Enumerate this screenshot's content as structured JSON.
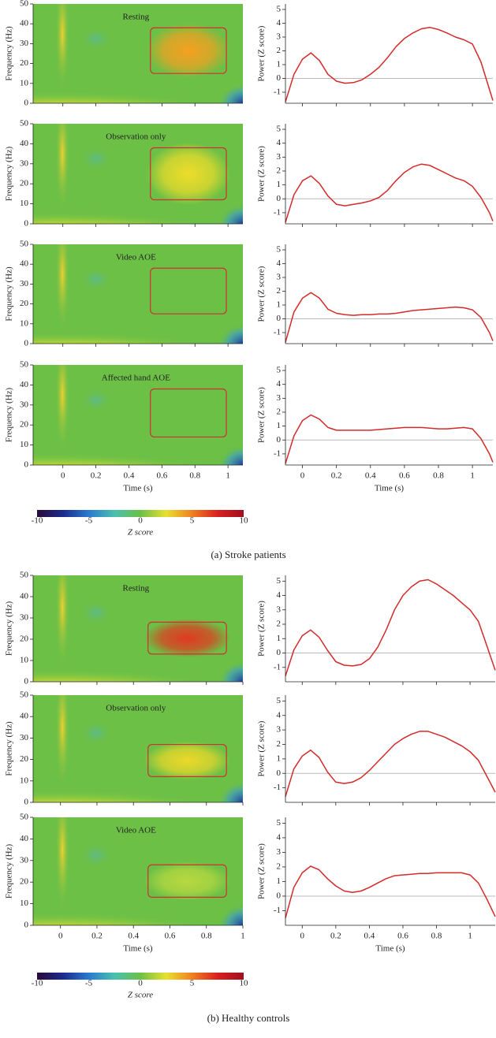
{
  "chart_data": [
    {
      "type": "spectrogram",
      "annotation": "Resting",
      "ylabel": "Frequency (Hz)",
      "xlim": [
        -0.18,
        1.09
      ],
      "ylim": [
        0,
        50
      ],
      "xticks": [
        0,
        0.2,
        0.4,
        0.6,
        0.8,
        1
      ],
      "yticks": [
        0,
        10,
        20,
        30,
        40,
        50
      ],
      "xtick_labels": false,
      "highlight": {
        "x": [
          0.53,
          0.99
        ],
        "y": [
          15,
          38
        ]
      },
      "color": "#f5a020"
    },
    {
      "type": "line",
      "ylabel": "Power (Z score)",
      "color": "#d42a2a",
      "xlim": [
        -0.1,
        1.12
      ],
      "ylim": [
        -1.8,
        5.4
      ],
      "xticks": [
        0,
        0.2,
        0.4,
        0.6,
        0.8,
        1
      ],
      "yticks": [
        -1,
        0,
        1,
        2,
        3,
        4,
        5
      ],
      "xtick_labels": false,
      "x": [
        -0.1,
        -0.05,
        0,
        0.05,
        0.1,
        0.15,
        0.2,
        0.25,
        0.3,
        0.35,
        0.4,
        0.45,
        0.5,
        0.55,
        0.6,
        0.65,
        0.7,
        0.75,
        0.8,
        0.85,
        0.9,
        0.95,
        1.0,
        1.05,
        1.1,
        1.12
      ],
      "values": [
        -1.7,
        0.3,
        1.4,
        1.85,
        1.3,
        0.3,
        -0.2,
        -0.35,
        -0.3,
        -0.1,
        0.3,
        0.8,
        1.5,
        2.3,
        2.9,
        3.3,
        3.6,
        3.7,
        3.55,
        3.3,
        3.0,
        2.8,
        2.5,
        1.2,
        -0.8,
        -1.6
      ]
    },
    {
      "type": "spectrogram",
      "annotation": "Observation only",
      "ylabel": "Frequency (Hz)",
      "xlim": [
        -0.18,
        1.09
      ],
      "ylim": [
        0,
        50
      ],
      "xticks": [
        0,
        0.2,
        0.4,
        0.6,
        0.8,
        1
      ],
      "yticks": [
        0,
        10,
        20,
        30,
        40,
        50
      ],
      "xtick_labels": false,
      "highlight": {
        "x": [
          0.53,
          0.99
        ],
        "y": [
          12,
          38
        ]
      },
      "color": "#eedc2a"
    },
    {
      "type": "line",
      "ylabel": "Power (Z score)",
      "color": "#d42a2a",
      "xlim": [
        -0.1,
        1.12
      ],
      "ylim": [
        -1.8,
        5.4
      ],
      "xticks": [
        0,
        0.2,
        0.4,
        0.6,
        0.8,
        1
      ],
      "yticks": [
        -1,
        0,
        1,
        2,
        3,
        4,
        5
      ],
      "xtick_labels": false,
      "x": [
        -0.1,
        -0.05,
        0,
        0.05,
        0.1,
        0.15,
        0.2,
        0.25,
        0.3,
        0.35,
        0.4,
        0.45,
        0.5,
        0.55,
        0.6,
        0.65,
        0.7,
        0.75,
        0.8,
        0.85,
        0.9,
        0.95,
        1.0,
        1.05,
        1.1,
        1.12
      ],
      "values": [
        -1.7,
        0.3,
        1.3,
        1.65,
        1.1,
        0.2,
        -0.4,
        -0.5,
        -0.4,
        -0.3,
        -0.15,
        0.1,
        0.6,
        1.3,
        1.9,
        2.3,
        2.5,
        2.4,
        2.1,
        1.8,
        1.5,
        1.3,
        0.9,
        0.1,
        -1.0,
        -1.6
      ]
    },
    {
      "type": "spectrogram",
      "annotation": "Video AOE",
      "ylabel": "Frequency (Hz)",
      "xlim": [
        -0.18,
        1.09
      ],
      "ylim": [
        0,
        50
      ],
      "xticks": [
        0,
        0.2,
        0.4,
        0.6,
        0.8,
        1
      ],
      "yticks": [
        0,
        10,
        20,
        30,
        40,
        50
      ],
      "xtick_labels": false,
      "highlight": {
        "x": [
          0.53,
          0.99
        ],
        "y": [
          15,
          38
        ]
      }
    },
    {
      "type": "line",
      "ylabel": "Power (Z score)",
      "color": "#d42a2a",
      "xlim": [
        -0.1,
        1.12
      ],
      "ylim": [
        -1.8,
        5.4
      ],
      "xticks": [
        0,
        0.2,
        0.4,
        0.6,
        0.8,
        1
      ],
      "yticks": [
        -1,
        0,
        1,
        2,
        3,
        4,
        5
      ],
      "xtick_labels": false,
      "x": [
        -0.1,
        -0.05,
        0,
        0.05,
        0.1,
        0.15,
        0.2,
        0.25,
        0.3,
        0.35,
        0.4,
        0.45,
        0.5,
        0.55,
        0.6,
        0.65,
        0.7,
        0.75,
        0.8,
        0.85,
        0.9,
        0.95,
        1.0,
        1.05,
        1.1,
        1.12
      ],
      "values": [
        -1.7,
        0.5,
        1.5,
        1.9,
        1.5,
        0.7,
        0.4,
        0.3,
        0.25,
        0.3,
        0.3,
        0.35,
        0.35,
        0.4,
        0.5,
        0.6,
        0.65,
        0.7,
        0.75,
        0.8,
        0.85,
        0.8,
        0.65,
        0.1,
        -1.0,
        -1.6
      ]
    },
    {
      "type": "spectrogram",
      "annotation": "Affected hand AOE",
      "ylabel": "Frequency (Hz)",
      "xlabel": "Time (s)",
      "xlim": [
        -0.18,
        1.09
      ],
      "ylim": [
        0,
        50
      ],
      "xticks": [
        0,
        0.2,
        0.4,
        0.6,
        0.8,
        1
      ],
      "yticks": [
        0,
        10,
        20,
        30,
        40,
        50
      ],
      "xtick_labels": true,
      "highlight": {
        "x": [
          0.53,
          0.99
        ],
        "y": [
          14,
          38
        ]
      }
    },
    {
      "type": "line",
      "ylabel": "Power (Z score)",
      "xlabel": "Time (s)",
      "color": "#d42a2a",
      "xlim": [
        -0.1,
        1.12
      ],
      "ylim": [
        -1.8,
        5.4
      ],
      "xticks": [
        0,
        0.2,
        0.4,
        0.6,
        0.8,
        1
      ],
      "yticks": [
        -1,
        0,
        1,
        2,
        3,
        4,
        5
      ],
      "xtick_labels": true,
      "x": [
        -0.1,
        -0.05,
        0,
        0.05,
        0.1,
        0.15,
        0.2,
        0.25,
        0.3,
        0.35,
        0.4,
        0.45,
        0.5,
        0.55,
        0.6,
        0.65,
        0.7,
        0.75,
        0.8,
        0.85,
        0.9,
        0.95,
        1.0,
        1.05,
        1.1,
        1.12
      ],
      "values": [
        -1.7,
        0.3,
        1.4,
        1.8,
        1.5,
        0.9,
        0.7,
        0.7,
        0.7,
        0.7,
        0.7,
        0.75,
        0.8,
        0.85,
        0.9,
        0.9,
        0.9,
        0.85,
        0.8,
        0.8,
        0.85,
        0.9,
        0.8,
        0.1,
        -1.0,
        -1.6
      ]
    },
    {
      "type": "colorbar",
      "xlabel": "Z score",
      "xlim": [
        -10,
        10
      ],
      "xticks": [
        -10,
        -5,
        0,
        5,
        10
      ],
      "colors": [
        "#2a0a3a",
        "#1c2a8c",
        "#2a7ad0",
        "#4ac0b0",
        "#6cc046",
        "#e8e030",
        "#f08020",
        "#d82020",
        "#a01020"
      ]
    },
    {
      "type": "spectrogram",
      "annotation": "Resting",
      "ylabel": "Frequency (Hz)",
      "xlim": [
        -0.15,
        1
      ],
      "ylim": [
        0,
        50
      ],
      "xticks": [
        0,
        0.2,
        0.4,
        0.6,
        0.8,
        1
      ],
      "yticks": [
        0,
        10,
        20,
        30,
        40,
        50
      ],
      "xtick_labels": false,
      "highlight": {
        "x": [
          0.48,
          0.91
        ],
        "y": [
          13,
          28
        ]
      },
      "color": "#e03a20"
    },
    {
      "type": "line",
      "ylabel": "Power (Z score)",
      "color": "#d42a2a",
      "xlim": [
        -0.1,
        1.15
      ],
      "ylim": [
        -2,
        5.4
      ],
      "xticks": [
        0,
        0.2,
        0.4,
        0.6,
        0.8,
        1
      ],
      "yticks": [
        -1,
        0,
        1,
        2,
        3,
        4,
        5
      ],
      "xtick_labels": false,
      "x": [
        -0.1,
        -0.05,
        0,
        0.05,
        0.1,
        0.15,
        0.2,
        0.25,
        0.3,
        0.35,
        0.4,
        0.45,
        0.5,
        0.55,
        0.6,
        0.65,
        0.7,
        0.75,
        0.8,
        0.85,
        0.9,
        0.95,
        1.0,
        1.05,
        1.1,
        1.15
      ],
      "values": [
        -1.6,
        0.2,
        1.2,
        1.6,
        1.1,
        0.2,
        -0.6,
        -0.85,
        -0.9,
        -0.8,
        -0.4,
        0.4,
        1.6,
        3.0,
        4.0,
        4.6,
        5.0,
        5.1,
        4.8,
        4.4,
        4.0,
        3.5,
        3.0,
        2.2,
        0.5,
        -1.2
      ]
    },
    {
      "type": "spectrogram",
      "annotation": "Observation only",
      "ylabel": "Frequency (Hz)",
      "xlim": [
        -0.15,
        1
      ],
      "ylim": [
        0,
        50
      ],
      "xticks": [
        0,
        0.2,
        0.4,
        0.6,
        0.8,
        1
      ],
      "yticks": [
        0,
        10,
        20,
        30,
        40,
        50
      ],
      "xtick_labels": false,
      "highlight": {
        "x": [
          0.48,
          0.91
        ],
        "y": [
          12,
          27
        ]
      },
      "color": "#ecd82a"
    },
    {
      "type": "line",
      "ylabel": "Power (Z score)",
      "color": "#d42a2a",
      "xlim": [
        -0.1,
        1.15
      ],
      "ylim": [
        -2,
        5.4
      ],
      "xticks": [
        0,
        0.2,
        0.4,
        0.6,
        0.8,
        1
      ],
      "yticks": [
        -1,
        0,
        1,
        2,
        3,
        4,
        5
      ],
      "xtick_labels": false,
      "x": [
        -0.1,
        -0.05,
        0,
        0.05,
        0.1,
        0.15,
        0.2,
        0.25,
        0.3,
        0.35,
        0.4,
        0.45,
        0.5,
        0.55,
        0.6,
        0.65,
        0.7,
        0.75,
        0.8,
        0.85,
        0.9,
        0.95,
        1.0,
        1.05,
        1.1,
        1.15
      ],
      "values": [
        -1.6,
        0.3,
        1.2,
        1.6,
        1.1,
        0.1,
        -0.6,
        -0.7,
        -0.6,
        -0.3,
        0.2,
        0.8,
        1.4,
        2.0,
        2.4,
        2.7,
        2.9,
        2.9,
        2.7,
        2.5,
        2.2,
        1.9,
        1.5,
        0.9,
        -0.2,
        -1.3
      ]
    },
    {
      "type": "spectrogram",
      "annotation": "Video AOE",
      "ylabel": "Frequency (Hz)",
      "xlabel": "Time (s)",
      "xlim": [
        -0.15,
        1
      ],
      "ylim": [
        0,
        50
      ],
      "xticks": [
        0,
        0.2,
        0.4,
        0.6,
        0.8,
        1
      ],
      "yticks": [
        0,
        10,
        20,
        30,
        40,
        50
      ],
      "xtick_labels": true,
      "highlight": {
        "x": [
          0.48,
          0.91
        ],
        "y": [
          13,
          28
        ]
      },
      "color": "#b8d840"
    },
    {
      "type": "line",
      "ylabel": "Power (Z score)",
      "xlabel": "Time (s)",
      "color": "#d42a2a",
      "xlim": [
        -0.1,
        1.15
      ],
      "ylim": [
        -2,
        5.4
      ],
      "xticks": [
        0,
        0.2,
        0.4,
        0.6,
        0.8,
        1
      ],
      "yticks": [
        -1,
        0,
        1,
        2,
        3,
        4,
        5
      ],
      "xtick_labels": true,
      "x": [
        -0.1,
        -0.05,
        0,
        0.05,
        0.1,
        0.15,
        0.2,
        0.25,
        0.3,
        0.35,
        0.4,
        0.45,
        0.5,
        0.55,
        0.6,
        0.65,
        0.7,
        0.75,
        0.8,
        0.85,
        0.9,
        0.95,
        1.0,
        1.05,
        1.1,
        1.15
      ],
      "values": [
        -1.5,
        0.6,
        1.6,
        2.05,
        1.8,
        1.2,
        0.7,
        0.35,
        0.25,
        0.35,
        0.6,
        0.9,
        1.2,
        1.4,
        1.45,
        1.5,
        1.55,
        1.55,
        1.6,
        1.6,
        1.6,
        1.6,
        1.45,
        0.9,
        -0.2,
        -1.4
      ]
    },
    {
      "type": "colorbar",
      "xlabel": "Z score",
      "xlim": [
        -10,
        10
      ],
      "xticks": [
        -10,
        -5,
        0,
        5,
        10
      ],
      "colors": [
        "#2a0a3a",
        "#1c2a8c",
        "#2a7ad0",
        "#4ac0b0",
        "#6cc046",
        "#e8e030",
        "#f08020",
        "#d82020",
        "#a01020"
      ]
    }
  ],
  "captions": [
    "(a)  Stroke patients",
    "(b)  Healthy controls"
  ]
}
